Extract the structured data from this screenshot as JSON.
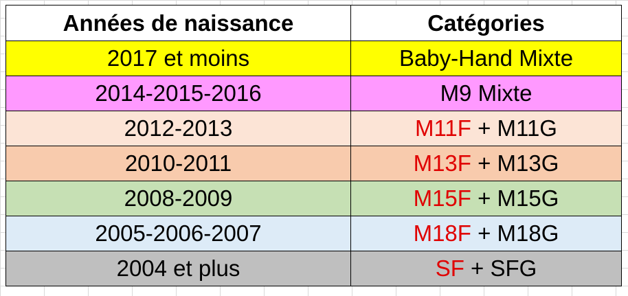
{
  "table": {
    "headers": [
      "Années de naissance",
      "Catégories"
    ],
    "rows": [
      {
        "years": "2017 et moins",
        "cat_red": "",
        "cat_sep": "",
        "cat_black": "Baby-Hand Mixte",
        "bg": "#ffff00"
      },
      {
        "years": "2014-2015-2016",
        "cat_red": "",
        "cat_sep": "",
        "cat_black": "M9 Mixte",
        "bg": "#ff99ff"
      },
      {
        "years": "2012-2013",
        "cat_red": "M11F",
        "cat_sep": " + ",
        "cat_black": "M11G",
        "bg": "#fce4d6"
      },
      {
        "years": "2010-2011",
        "cat_red": "M13F",
        "cat_sep": " + ",
        "cat_black": "M13G",
        "bg": "#f8cbad"
      },
      {
        "years": "2008-2009",
        "cat_red": "M15F",
        "cat_sep": " + ",
        "cat_black": "M15G",
        "bg": "#c6e0b4"
      },
      {
        "years": "2005-2006-2007",
        "cat_red": "M18F",
        "cat_sep": " + ",
        "cat_black": "M18G",
        "bg": "#ddebf7"
      },
      {
        "years": "2004 et plus",
        "cat_red": "SF",
        "cat_sep": " + ",
        "cat_black": "SFG",
        "bg": "#bfbfbf"
      }
    ]
  }
}
